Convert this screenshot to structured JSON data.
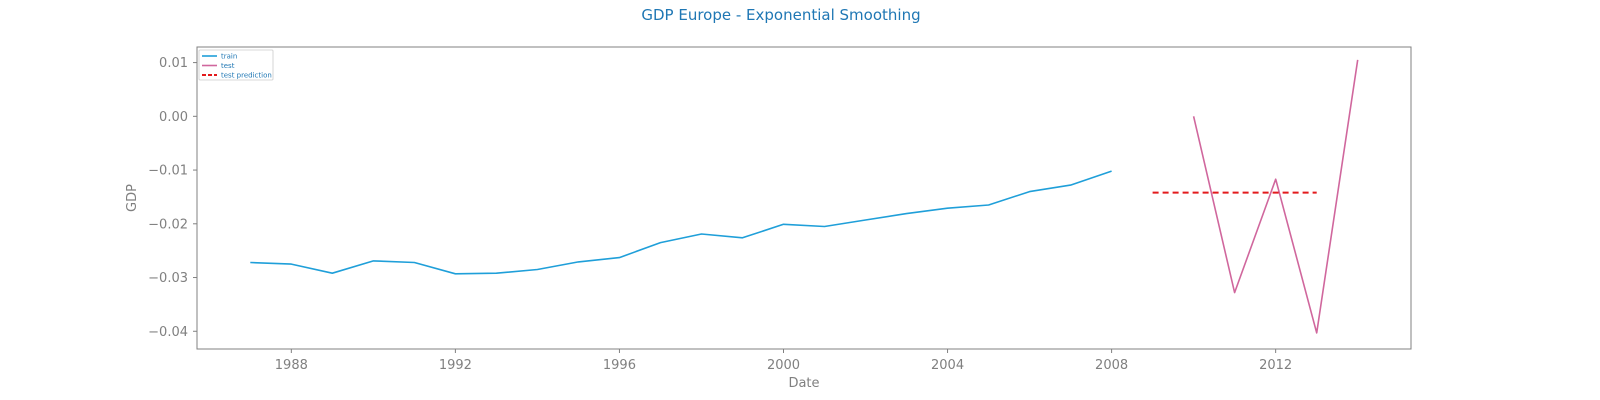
{
  "chart_data": {
    "type": "line",
    "title": "GDP Europe - Exponential Smoothing",
    "xlabel": "Date",
    "ylabel": "GDP",
    "xlim": [
      1985.7,
      2015.3
    ],
    "ylim": [
      -0.0433,
      0.0129
    ],
    "x_ticks": [
      1988,
      1992,
      1996,
      2000,
      2004,
      2008,
      2012
    ],
    "x_tick_labels": [
      "1988",
      "1992",
      "1996",
      "2000",
      "2004",
      "2008",
      "2012"
    ],
    "y_ticks": [
      0.01,
      0.0,
      -0.01,
      -0.02,
      -0.03,
      -0.04
    ],
    "y_tick_labels": [
      "0.01",
      "0.00",
      "−0.01",
      "−0.02",
      "−0.03",
      "−0.04"
    ],
    "grid": false,
    "legend_position": "top-left",
    "series": [
      {
        "name": "train",
        "color": "#1f9fd9",
        "style": "solid",
        "x": [
          1987,
          1988,
          1989,
          1990,
          1991,
          1992,
          1993,
          1994,
          1995,
          1996,
          1997,
          1998,
          1999,
          2000,
          2001,
          2002,
          2003,
          2004,
          2005,
          2006,
          2007,
          2008
        ],
        "y": [
          -0.0272,
          -0.0275,
          -0.0292,
          -0.0269,
          -0.0272,
          -0.0293,
          -0.0292,
          -0.0285,
          -0.0271,
          -0.0263,
          -0.0235,
          -0.0219,
          -0.0226,
          -0.0201,
          -0.0205,
          -0.0193,
          -0.0181,
          -0.0171,
          -0.0165,
          -0.014,
          -0.0128,
          -0.0102
        ]
      },
      {
        "name": "test",
        "color": "#d0679d",
        "style": "solid",
        "x": [
          2010,
          2011,
          2012,
          2013,
          2014
        ],
        "y": [
          0.0,
          -0.0328,
          -0.0117,
          -0.0403,
          0.0105
        ]
      },
      {
        "name": "test prediction",
        "color": "#e31a1c",
        "style": "dashed",
        "x": [
          2009,
          2013
        ],
        "y": [
          -0.0142,
          -0.0142
        ]
      }
    ]
  }
}
